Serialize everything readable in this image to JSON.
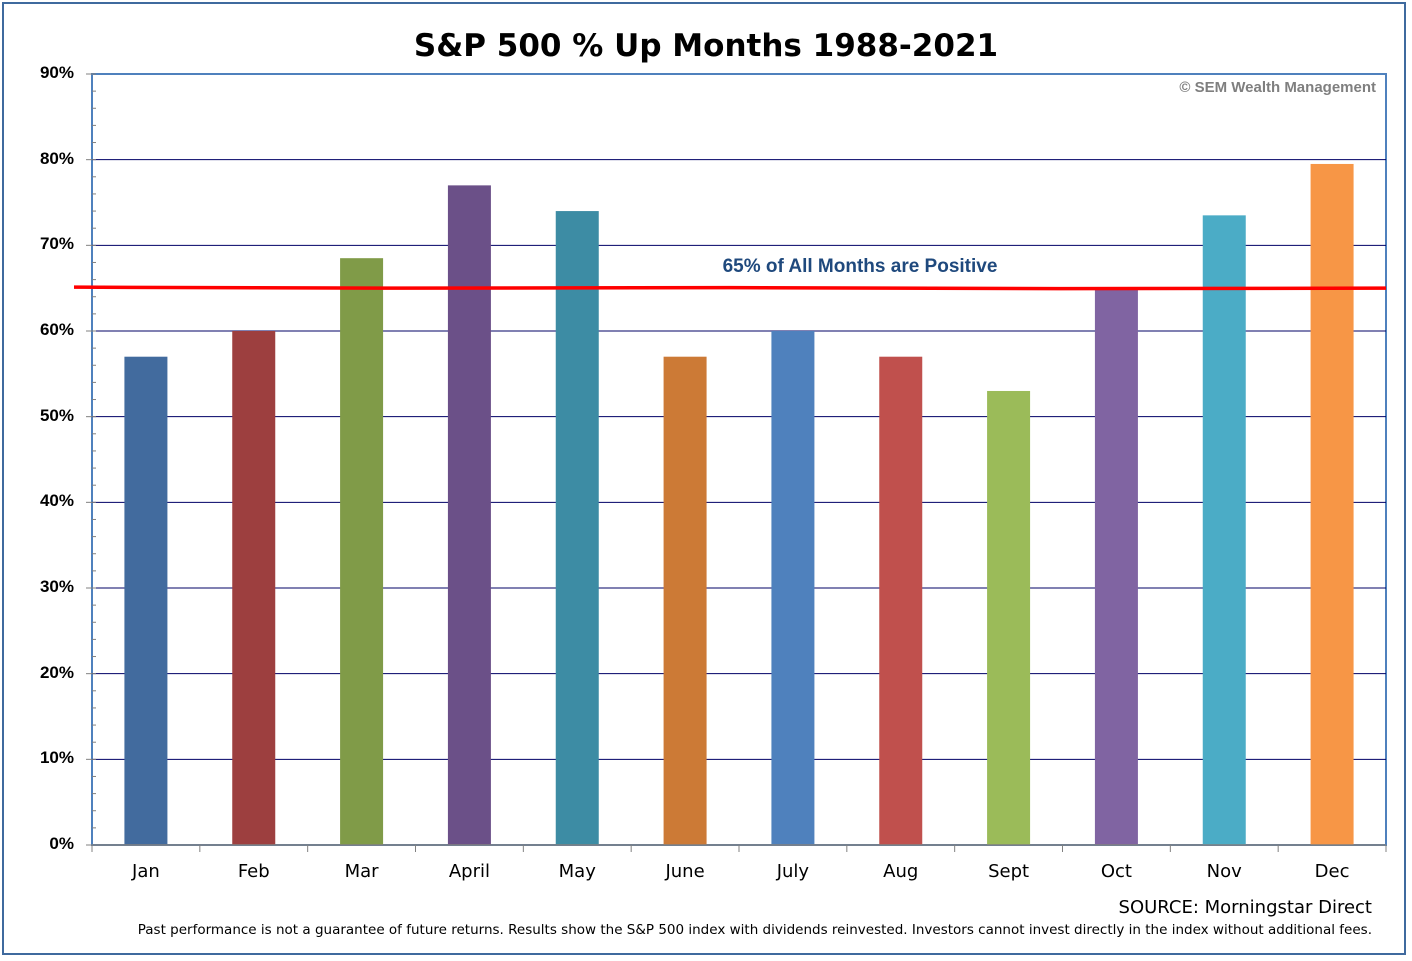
{
  "chart_data": {
    "type": "bar",
    "title": "S&P 500 % Up Months 1988-2021",
    "categories": [
      "Jan",
      "Feb",
      "Mar",
      "April",
      "May",
      "June",
      "July",
      "Aug",
      "Sept",
      "Oct",
      "Nov",
      "Dec"
    ],
    "values": [
      57,
      60,
      68.5,
      77,
      74,
      57,
      60,
      57,
      53,
      65,
      73.5,
      79.5
    ],
    "colors": [
      "#426b9e",
      "#9d3f3f",
      "#809b48",
      "#6b5088",
      "#3d8ca4",
      "#cc7a36",
      "#4f81bd",
      "#c0504d",
      "#9bbb59",
      "#8064a2",
      "#4bacc6",
      "#f79646"
    ],
    "ylim": [
      0,
      90
    ],
    "yticks": [
      0,
      10,
      20,
      30,
      40,
      50,
      60,
      70,
      80,
      90
    ],
    "ytick_labels": [
      "0%",
      "10%",
      "20%",
      "30%",
      "40%",
      "50%",
      "60%",
      "70%",
      "80%",
      "90%"
    ],
    "grid": true,
    "reference_line": {
      "value": 65,
      "label": "65% of All Months are Positive",
      "color": "#ff0000"
    }
  },
  "copyright": "© SEM Wealth Management",
  "source": "SOURCE: Morningstar Direct",
  "disclaimer": "Past performance is not a guarantee of future returns. Results show the S&P 500 index with dividends reinvested. Investors cannot invest directly in the index without additional fees."
}
